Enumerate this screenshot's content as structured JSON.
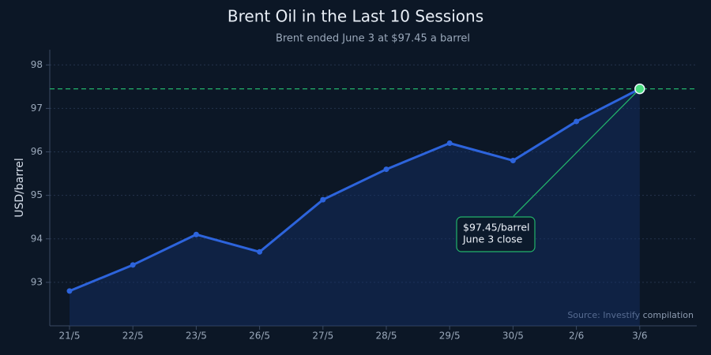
{
  "chart_data": {
    "type": "line",
    "title": "Brent Oil in the Last 10 Sessions",
    "subtitle": "Brent ended June 3 at $97.45 a barrel",
    "y_label": "USD/barrel",
    "categories": [
      "21/5",
      "22/5",
      "23/5",
      "26/5",
      "27/5",
      "28/5",
      "29/5",
      "30/5",
      "2/6",
      "3/6"
    ],
    "series": [
      {
        "name": "Brent",
        "color": "#2d64dc",
        "values": [
          92.8,
          93.4,
          94.1,
          93.7,
          94.9,
          95.6,
          96.2,
          95.8,
          96.7,
          97.45
        ]
      }
    ],
    "ylim": [
      92,
      98.35
    ],
    "yticks": [
      93,
      94,
      95,
      96,
      97,
      98
    ],
    "grid": true,
    "reference_line": {
      "value": 97.45,
      "color": "#22b36b"
    },
    "annotation": [
      "$97.45/barrel",
      "June 3 close"
    ],
    "source": "Source: Investify compilation"
  }
}
